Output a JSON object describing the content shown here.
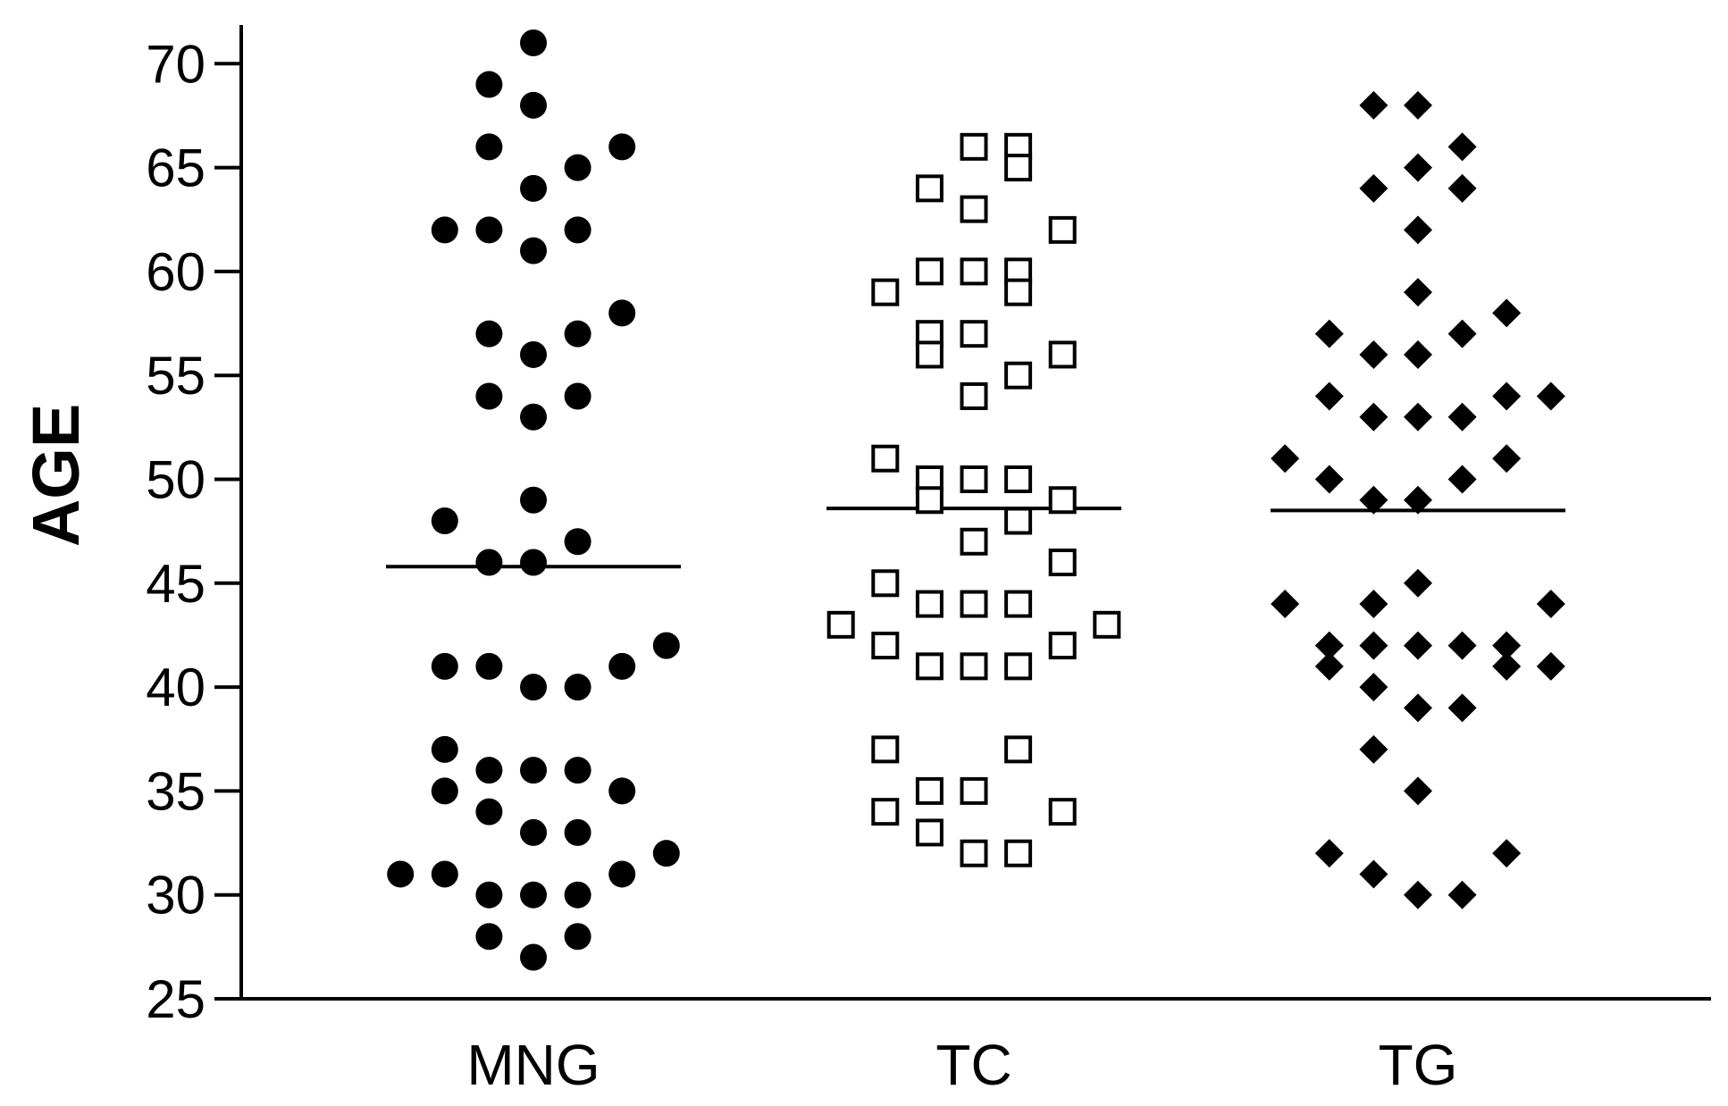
{
  "chart_data": {
    "type": "scatter",
    "ylabel": "AGE",
    "xlabel": "",
    "ylim": [
      25,
      72
    ],
    "yticks": [
      25,
      30,
      35,
      40,
      45,
      50,
      55,
      60,
      65,
      70
    ],
    "categories": [
      "MNG",
      "TC",
      "TG"
    ],
    "grid": false,
    "series": [
      {
        "category": "MNG",
        "marker": "filled-circle",
        "color": "#000000",
        "mean": 45.8,
        "points": [
          {
            "x": 0,
            "y": 71
          },
          {
            "x": -1,
            "y": 69
          },
          {
            "x": 0,
            "y": 68
          },
          {
            "x": -1,
            "y": 66
          },
          {
            "x": 2,
            "y": 66
          },
          {
            "x": 1,
            "y": 65
          },
          {
            "x": 0,
            "y": 64
          },
          {
            "x": -2,
            "y": 62
          },
          {
            "x": -1,
            "y": 62
          },
          {
            "x": 1,
            "y": 62
          },
          {
            "x": 0,
            "y": 61
          },
          {
            "x": 2,
            "y": 58
          },
          {
            "x": -1,
            "y": 57
          },
          {
            "x": 1,
            "y": 57
          },
          {
            "x": 0,
            "y": 56
          },
          {
            "x": -1,
            "y": 54
          },
          {
            "x": 1,
            "y": 54
          },
          {
            "x": 0,
            "y": 53
          },
          {
            "x": 0,
            "y": 49
          },
          {
            "x": -2,
            "y": 48
          },
          {
            "x": 1,
            "y": 47
          },
          {
            "x": -1,
            "y": 46
          },
          {
            "x": 0,
            "y": 46
          },
          {
            "x": 3,
            "y": 42
          },
          {
            "x": -2,
            "y": 41
          },
          {
            "x": -1,
            "y": 41
          },
          {
            "x": 2,
            "y": 41
          },
          {
            "x": 0,
            "y": 40
          },
          {
            "x": 1,
            "y": 40
          },
          {
            "x": -2,
            "y": 37
          },
          {
            "x": -1,
            "y": 36
          },
          {
            "x": 0,
            "y": 36
          },
          {
            "x": 1,
            "y": 36
          },
          {
            "x": -2,
            "y": 35
          },
          {
            "x": 2,
            "y": 35
          },
          {
            "x": -1,
            "y": 34
          },
          {
            "x": 0,
            "y": 33
          },
          {
            "x": 1,
            "y": 33
          },
          {
            "x": 3,
            "y": 32
          },
          {
            "x": -3,
            "y": 31
          },
          {
            "x": -2,
            "y": 31
          },
          {
            "x": 2,
            "y": 31
          },
          {
            "x": -1,
            "y": 30
          },
          {
            "x": 0,
            "y": 30
          },
          {
            "x": 1,
            "y": 30
          },
          {
            "x": -1,
            "y": 28
          },
          {
            "x": 1,
            "y": 28
          },
          {
            "x": 0,
            "y": 27
          }
        ]
      },
      {
        "category": "TC",
        "marker": "open-square",
        "color": "#000000",
        "mean": 48.6,
        "points": [
          {
            "x": 0,
            "y": 66
          },
          {
            "x": 1,
            "y": 66
          },
          {
            "x": 1,
            "y": 65
          },
          {
            "x": -1,
            "y": 64
          },
          {
            "x": 0,
            "y": 63
          },
          {
            "x": 2,
            "y": 62
          },
          {
            "x": -1,
            "y": 60
          },
          {
            "x": 0,
            "y": 60
          },
          {
            "x": 1,
            "y": 60
          },
          {
            "x": -2,
            "y": 59
          },
          {
            "x": 1,
            "y": 59
          },
          {
            "x": -1,
            "y": 57
          },
          {
            "x": 0,
            "y": 57
          },
          {
            "x": -1,
            "y": 56
          },
          {
            "x": 2,
            "y": 56
          },
          {
            "x": 1,
            "y": 55
          },
          {
            "x": 0,
            "y": 54
          },
          {
            "x": -2,
            "y": 51
          },
          {
            "x": -1,
            "y": 50
          },
          {
            "x": 0,
            "y": 50
          },
          {
            "x": 1,
            "y": 50
          },
          {
            "x": -1,
            "y": 49
          },
          {
            "x": 2,
            "y": 49
          },
          {
            "x": 1,
            "y": 48
          },
          {
            "x": 0,
            "y": 47
          },
          {
            "x": 2,
            "y": 46
          },
          {
            "x": -2,
            "y": 45
          },
          {
            "x": -1,
            "y": 44
          },
          {
            "x": 0,
            "y": 44
          },
          {
            "x": 1,
            "y": 44
          },
          {
            "x": -3,
            "y": 43
          },
          {
            "x": 3,
            "y": 43
          },
          {
            "x": -2,
            "y": 42
          },
          {
            "x": 2,
            "y": 42
          },
          {
            "x": -1,
            "y": 41
          },
          {
            "x": 0,
            "y": 41
          },
          {
            "x": 1,
            "y": 41
          },
          {
            "x": -2,
            "y": 37
          },
          {
            "x": 1,
            "y": 37
          },
          {
            "x": -1,
            "y": 35
          },
          {
            "x": 0,
            "y": 35
          },
          {
            "x": -2,
            "y": 34
          },
          {
            "x": 2,
            "y": 34
          },
          {
            "x": -1,
            "y": 33
          },
          {
            "x": 0,
            "y": 32
          },
          {
            "x": 1,
            "y": 32
          }
        ]
      },
      {
        "category": "TG",
        "marker": "filled-diamond",
        "color": "#000000",
        "mean": 48.5,
        "points": [
          {
            "x": -1,
            "y": 68
          },
          {
            "x": 0,
            "y": 68
          },
          {
            "x": 1,
            "y": 66
          },
          {
            "x": 0,
            "y": 65
          },
          {
            "x": -1,
            "y": 64
          },
          {
            "x": 1,
            "y": 64
          },
          {
            "x": 0,
            "y": 62
          },
          {
            "x": 0,
            "y": 59
          },
          {
            "x": 2,
            "y": 58
          },
          {
            "x": -2,
            "y": 57
          },
          {
            "x": 1,
            "y": 57
          },
          {
            "x": -1,
            "y": 56
          },
          {
            "x": 0,
            "y": 56
          },
          {
            "x": -2,
            "y": 54
          },
          {
            "x": 2,
            "y": 54
          },
          {
            "x": 3,
            "y": 54
          },
          {
            "x": -1,
            "y": 53
          },
          {
            "x": 0,
            "y": 53
          },
          {
            "x": 1,
            "y": 53
          },
          {
            "x": -3,
            "y": 51
          },
          {
            "x": 2,
            "y": 51
          },
          {
            "x": -2,
            "y": 50
          },
          {
            "x": 1,
            "y": 50
          },
          {
            "x": -1,
            "y": 49
          },
          {
            "x": 0,
            "y": 49
          },
          {
            "x": 0,
            "y": 45
          },
          {
            "x": -3,
            "y": 44
          },
          {
            "x": -1,
            "y": 44
          },
          {
            "x": 3,
            "y": 44
          },
          {
            "x": -2,
            "y": 42
          },
          {
            "x": -1,
            "y": 42
          },
          {
            "x": 0,
            "y": 42
          },
          {
            "x": 1,
            "y": 42
          },
          {
            "x": 2,
            "y": 42
          },
          {
            "x": -2,
            "y": 41
          },
          {
            "x": 2,
            "y": 41
          },
          {
            "x": 3,
            "y": 41
          },
          {
            "x": -1,
            "y": 40
          },
          {
            "x": 0,
            "y": 39
          },
          {
            "x": 1,
            "y": 39
          },
          {
            "x": -1,
            "y": 37
          },
          {
            "x": 0,
            "y": 35
          },
          {
            "x": -2,
            "y": 32
          },
          {
            "x": 2,
            "y": 32
          },
          {
            "x": -1,
            "y": 31
          },
          {
            "x": 0,
            "y": 30
          },
          {
            "x": 1,
            "y": 30
          }
        ]
      }
    ]
  }
}
